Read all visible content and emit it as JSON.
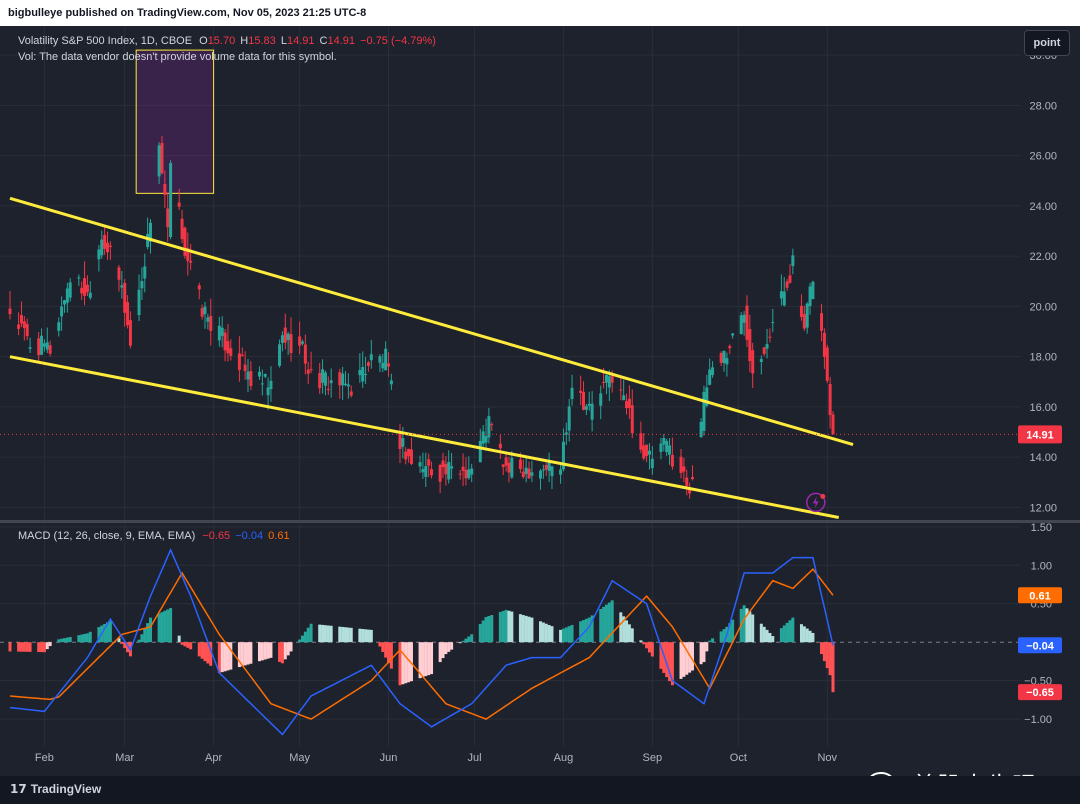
{
  "header": {
    "publisher": "bigbulleye published on TradingView.com, Nov 05, 2023 21:25 UTC-8"
  },
  "legend": {
    "symbol": "Volatility S&P 500 Index, 1D, CBOE",
    "o_label": "O",
    "o": "15.70",
    "h_label": "H",
    "h": "15.83",
    "l_label": "L",
    "l": "14.91",
    "c_label": "C",
    "c": "14.91",
    "change": "−0.75 (−4.79%)",
    "vol_note": "Vol: The data vendor doesn't provide volume data for this symbol."
  },
  "macd_legend": {
    "name": "MACD (12, 26, close, 9, EMA, EMA)",
    "hist": "−0.65",
    "macd": "−0.04",
    "signal": "0.61"
  },
  "toolbar": {
    "point_label": "point"
  },
  "price_axis": {
    "ticks": [
      "30.00",
      "28.00",
      "26.00",
      "24.00",
      "22.00",
      "20.00",
      "18.00",
      "16.00",
      "14.00",
      "12.00"
    ],
    "last_price": "14.91"
  },
  "macd_axis": {
    "ticks": [
      "1.50",
      "1.00",
      "0.50",
      "−0.50",
      "−1.00"
    ],
    "badges": [
      "0.61",
      "−0.04",
      "−0.65"
    ]
  },
  "time_axis": {
    "labels": [
      "Feb",
      "Mar",
      "Apr",
      "May",
      "Jun",
      "Jul",
      "Aug",
      "Sep",
      "Oct",
      "Nov"
    ]
  },
  "footer": {
    "brand": "TradingView",
    "watermark": "美股大牛眼"
  },
  "colors": {
    "up": "#26a69a",
    "down": "#f23645",
    "trendline": "#ffeb3b",
    "macd": "#2962ff",
    "signal": "#ff6d00",
    "box": "#ffeb3b"
  },
  "chart_data": [
    {
      "type": "candlestick",
      "title": "Volatility S&P 500 Index, 1D, CBOE",
      "x_range": [
        "2023-01-20",
        "2023-11-03"
      ],
      "ylim": [
        11.5,
        31.0
      ],
      "x_labels": [
        "Feb",
        "Mar",
        "Apr",
        "May",
        "Jun",
        "Jul",
        "Aug",
        "Sep",
        "Oct",
        "Nov"
      ],
      "anchors": [
        {
          "date": "2023-01-20",
          "close": 19.8
        },
        {
          "date": "2023-01-27",
          "close": 18.5
        },
        {
          "date": "2023-02-03",
          "close": 18.3
        },
        {
          "date": "2023-02-10",
          "close": 21.2
        },
        {
          "date": "2023-02-16",
          "close": 20.5
        },
        {
          "date": "2023-02-21",
          "close": 22.9
        },
        {
          "date": "2023-02-28",
          "close": 20.7
        },
        {
          "date": "2023-03-03",
          "close": 18.5
        },
        {
          "date": "2023-03-09",
          "close": 22.6
        },
        {
          "date": "2023-03-13",
          "close": 26.5
        },
        {
          "date": "2023-03-16",
          "close": 22.9
        },
        {
          "date": "2023-03-17",
          "close": 25.5
        },
        {
          "date": "2023-03-22",
          "close": 22.3
        },
        {
          "date": "2023-03-28",
          "close": 19.9
        },
        {
          "date": "2023-04-06",
          "close": 18.4
        },
        {
          "date": "2023-04-14",
          "close": 17.1
        },
        {
          "date": "2023-04-21",
          "close": 16.8
        },
        {
          "date": "2023-04-25",
          "close": 18.8
        },
        {
          "date": "2023-05-02",
          "close": 18.3
        },
        {
          "date": "2023-05-05",
          "close": 17.2
        },
        {
          "date": "2023-05-12",
          "close": 17.0
        },
        {
          "date": "2023-05-19",
          "close": 16.8
        },
        {
          "date": "2023-05-26",
          "close": 17.9
        },
        {
          "date": "2023-05-31",
          "close": 17.9
        },
        {
          "date": "2023-06-05",
          "close": 14.7
        },
        {
          "date": "2023-06-09",
          "close": 13.8
        },
        {
          "date": "2023-06-16",
          "close": 13.5
        },
        {
          "date": "2023-06-23",
          "close": 13.4
        },
        {
          "date": "2023-06-30",
          "close": 13.6
        },
        {
          "date": "2023-07-06",
          "close": 15.4
        },
        {
          "date": "2023-07-12",
          "close": 13.5
        },
        {
          "date": "2023-07-21",
          "close": 13.6
        },
        {
          "date": "2023-07-31",
          "close": 13.6
        },
        {
          "date": "2023-08-04",
          "close": 17.1
        },
        {
          "date": "2023-08-10",
          "close": 15.9
        },
        {
          "date": "2023-08-18",
          "close": 17.3
        },
        {
          "date": "2023-08-23",
          "close": 16.0
        },
        {
          "date": "2023-08-30",
          "close": 13.8
        },
        {
          "date": "2023-09-06",
          "close": 14.5
        },
        {
          "date": "2023-09-14",
          "close": 12.8
        },
        {
          "date": "2023-09-21",
          "close": 17.5
        },
        {
          "date": "2023-09-27",
          "close": 18.2
        },
        {
          "date": "2023-10-03",
          "close": 19.8
        },
        {
          "date": "2023-10-06",
          "close": 17.5
        },
        {
          "date": "2023-10-13",
          "close": 19.3
        },
        {
          "date": "2023-10-20",
          "close": 21.7
        },
        {
          "date": "2023-10-24",
          "close": 18.9
        },
        {
          "date": "2023-10-27",
          "close": 21.3
        },
        {
          "date": "2023-10-31",
          "close": 18.1
        },
        {
          "date": "2023-11-01",
          "close": 16.9
        },
        {
          "date": "2023-11-02",
          "close": 15.7
        },
        {
          "date": "2023-11-03",
          "close": 14.91
        }
      ],
      "last_candle": {
        "date": "2023-11-03",
        "open": 15.7,
        "high": 15.83,
        "low": 14.91,
        "close": 14.91
      },
      "annotations": {
        "trendlines": [
          {
            "from": {
              "date": "2023-01-20",
              "price": 24.3
            },
            "to": {
              "date": "2023-11-10",
              "price": 14.5
            }
          },
          {
            "from": {
              "date": "2023-01-20",
              "price": 18.0
            },
            "to": {
              "date": "2023-11-05",
              "price": 11.6
            }
          }
        ],
        "box": {
          "from": {
            "date": "2023-03-05",
            "price": 30.2
          },
          "to": {
            "date": "2023-04-01",
            "price": 24.5
          }
        },
        "last_price_line": 14.91
      }
    },
    {
      "type": "macd",
      "title": "MACD (12, 26, close, 9, EMA, EMA)",
      "ylim": [
        -1.35,
        1.55
      ],
      "last_values": {
        "histogram": -0.65,
        "macd": -0.04,
        "signal": 0.61
      },
      "macd_anchors": [
        {
          "date": "2023-01-20",
          "value": -0.85
        },
        {
          "date": "2023-02-01",
          "value": -0.9
        },
        {
          "date": "2023-02-16",
          "value": -0.2
        },
        {
          "date": "2023-02-24",
          "value": 0.3
        },
        {
          "date": "2023-03-03",
          "value": -0.1
        },
        {
          "date": "2023-03-10",
          "value": 0.6
        },
        {
          "date": "2023-03-17",
          "value": 1.2
        },
        {
          "date": "2023-03-24",
          "value": 0.6
        },
        {
          "date": "2023-04-03",
          "value": -0.4
        },
        {
          "date": "2023-04-14",
          "value": -0.8
        },
        {
          "date": "2023-04-25",
          "value": -1.2
        },
        {
          "date": "2023-05-05",
          "value": -0.7
        },
        {
          "date": "2023-05-26",
          "value": -0.3
        },
        {
          "date": "2023-06-05",
          "value": -0.8
        },
        {
          "date": "2023-06-16",
          "value": -1.1
        },
        {
          "date": "2023-06-30",
          "value": -0.8
        },
        {
          "date": "2023-07-12",
          "value": -0.3
        },
        {
          "date": "2023-07-21",
          "value": -0.2
        },
        {
          "date": "2023-07-31",
          "value": -0.2
        },
        {
          "date": "2023-08-10",
          "value": 0.2
        },
        {
          "date": "2023-08-18",
          "value": 0.8
        },
        {
          "date": "2023-08-30",
          "value": 0.5
        },
        {
          "date": "2023-09-08",
          "value": -0.5
        },
        {
          "date": "2023-09-19",
          "value": -0.8
        },
        {
          "date": "2023-09-27",
          "value": 0.1
        },
        {
          "date": "2023-10-03",
          "value": 0.9
        },
        {
          "date": "2023-10-13",
          "value": 0.9
        },
        {
          "date": "2023-10-20",
          "value": 1.1
        },
        {
          "date": "2023-10-27",
          "value": 1.1
        },
        {
          "date": "2023-11-03",
          "value": -0.04
        }
      ],
      "signal_anchors": [
        {
          "date": "2023-01-20",
          "value": -0.7
        },
        {
          "date": "2023-02-05",
          "value": -0.75
        },
        {
          "date": "2023-02-28",
          "value": 0.1
        },
        {
          "date": "2023-03-10",
          "value": 0.2
        },
        {
          "date": "2023-03-21",
          "value": 0.9
        },
        {
          "date": "2023-04-03",
          "value": 0.1
        },
        {
          "date": "2023-04-21",
          "value": -0.8
        },
        {
          "date": "2023-05-05",
          "value": -1.0
        },
        {
          "date": "2023-05-26",
          "value": -0.5
        },
        {
          "date": "2023-06-05",
          "value": -0.1
        },
        {
          "date": "2023-06-21",
          "value": -0.8
        },
        {
          "date": "2023-07-05",
          "value": -1.0
        },
        {
          "date": "2023-07-21",
          "value": -0.6
        },
        {
          "date": "2023-08-10",
          "value": -0.2
        },
        {
          "date": "2023-08-30",
          "value": 0.6
        },
        {
          "date": "2023-09-08",
          "value": 0.2
        },
        {
          "date": "2023-09-21",
          "value": -0.6
        },
        {
          "date": "2023-10-03",
          "value": 0.3
        },
        {
          "date": "2023-10-13",
          "value": 0.8
        },
        {
          "date": "2023-10-20",
          "value": 0.7
        },
        {
          "date": "2023-10-27",
          "value": 0.95
        },
        {
          "date": "2023-11-03",
          "value": 0.61
        }
      ]
    }
  ]
}
